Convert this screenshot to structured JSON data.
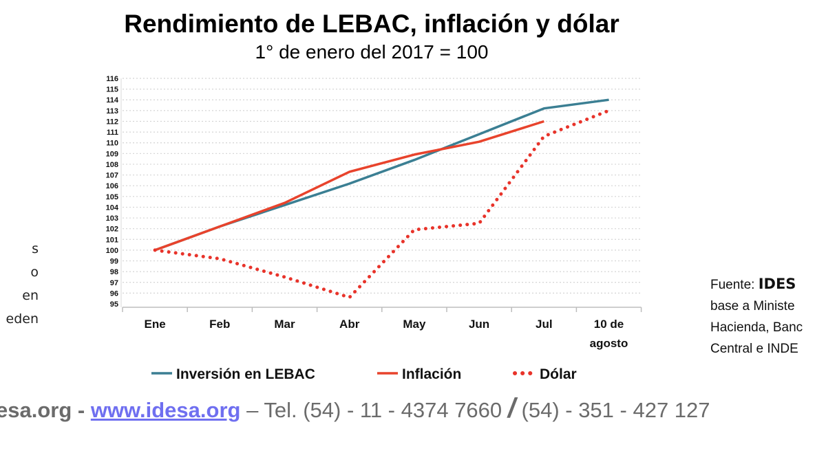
{
  "chart_data": {
    "type": "line",
    "title": "Rendimiento de LEBAC, inflación y dólar",
    "subtitle": "1° de enero del 2017 = 100",
    "categories": [
      "Ene",
      "Feb",
      "Mar",
      "Abr",
      "May",
      "Jun",
      "Jul",
      "10 de agosto"
    ],
    "category_lines": [
      [
        "Ene"
      ],
      [
        "Feb"
      ],
      [
        "Mar"
      ],
      [
        "Abr"
      ],
      [
        "May"
      ],
      [
        "Jun"
      ],
      [
        "Jul"
      ],
      [
        "10 de",
        "agosto"
      ]
    ],
    "ylim": [
      95,
      116
    ],
    "yticks": [
      95,
      96,
      97,
      98,
      99,
      100,
      101,
      102,
      103,
      104,
      105,
      106,
      107,
      108,
      109,
      110,
      111,
      112,
      113,
      114,
      115,
      116
    ],
    "grid": "horizontal dotted",
    "legend_position": "bottom",
    "series": [
      {
        "name": "Inversión en LEBAC",
        "color": "#3b7f93",
        "style": "solid",
        "values": [
          100,
          102.2,
          104.2,
          106.2,
          108.4,
          110.8,
          113.2,
          114
        ]
      },
      {
        "name": "Inflación",
        "color": "#e8432c",
        "style": "solid",
        "values": [
          100,
          102.2,
          104.4,
          107.3,
          108.9,
          110.1,
          112.0,
          null
        ]
      },
      {
        "name": "Dólar",
        "color": "#e8332a",
        "style": "dotted",
        "values": [
          100,
          99.2,
          97.5,
          95.6,
          101.9,
          102.5,
          110.6,
          113.0
        ]
      }
    ]
  },
  "left_fragments": [
    "s",
    "o",
    "en",
    "eden"
  ],
  "source": {
    "prefix": "Fuente: ",
    "org": "IDES",
    "lines": [
      "base a Ministe",
      "Hacienda, Banc",
      "Central e INDE"
    ]
  },
  "footer": {
    "part1": "esa.org - ",
    "link": "www.idesa.org",
    "part2": " – Tel. (54) - 11 - 4374 7660 ",
    "slash": "/",
    "part3": " (54) - 351 - 427 127"
  }
}
